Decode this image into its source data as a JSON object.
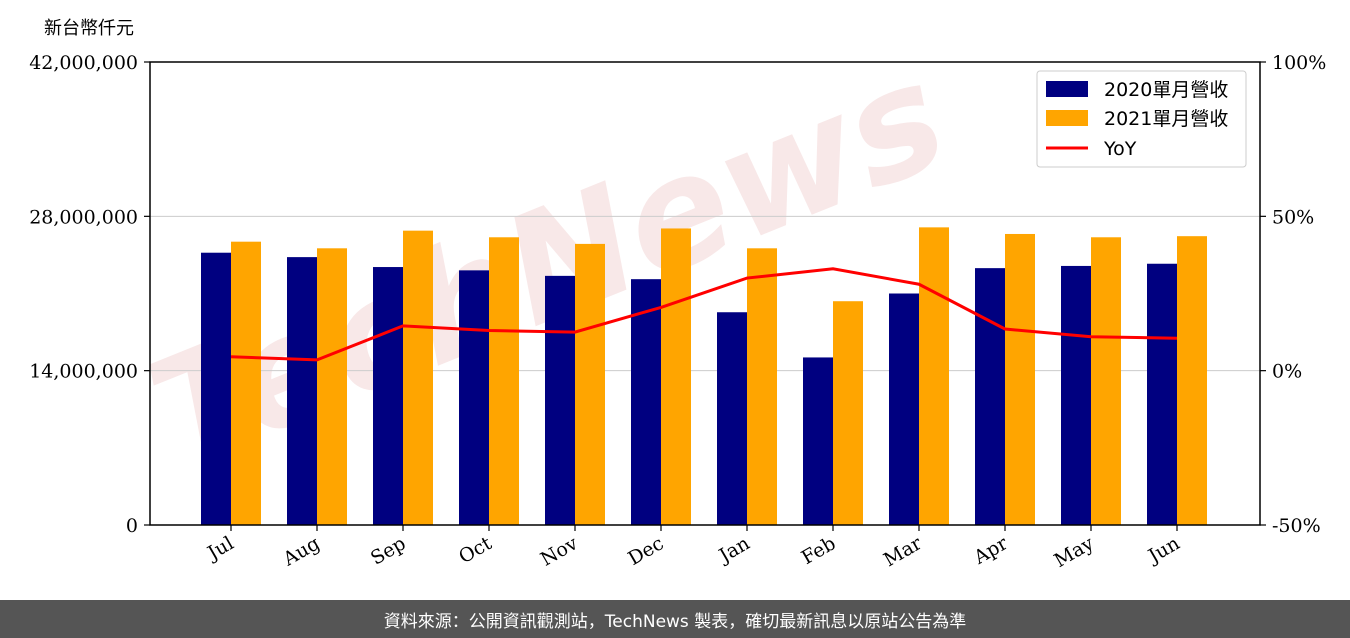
{
  "chart_data": {
    "type": "bar",
    "unit_label": "新台幣仟元",
    "categories": [
      "Jul",
      "Aug",
      "Sep",
      "Oct",
      "Nov",
      "Dec",
      "Jan",
      "Feb",
      "Mar",
      "Apr",
      "May",
      "Jun"
    ],
    "series": [
      {
        "name": "2020單月營收",
        "type": "bar",
        "axis": "left",
        "color": "#000080",
        "values": [
          24700000,
          24300000,
          23400000,
          23100000,
          22600000,
          22300000,
          19300000,
          15200000,
          21000000,
          23300000,
          23500000,
          23700000
        ]
      },
      {
        "name": "2021單月營收",
        "type": "bar",
        "axis": "left",
        "color": "#FFA500",
        "values": [
          25700000,
          25100000,
          26700000,
          26100000,
          25500000,
          26900000,
          25100000,
          20300000,
          27000000,
          26400000,
          26100000,
          26200000
        ]
      },
      {
        "name": "YoY",
        "type": "line",
        "axis": "right",
        "color": "#FF0000",
        "values": [
          4.5,
          3.5,
          14.5,
          13.0,
          12.5,
          20.5,
          30.0,
          33.0,
          28.0,
          13.5,
          11.0,
          10.5
        ]
      }
    ],
    "left_axis": {
      "ylim": [
        0,
        42000000
      ],
      "ticks": [
        "0",
        "14,000,000",
        "28,000,000",
        "42,000,000"
      ]
    },
    "right_axis": {
      "ylim": [
        -50,
        100
      ],
      "ticks": [
        "-50%",
        "0%",
        "50%",
        "100%"
      ]
    },
    "grid": "horizontal",
    "legend": "top-right",
    "watermark": "TechNews"
  },
  "footer": {
    "text": "資料來源：公開資訊觀測站，TechNews 製表，確切最新訊息以原站公告為準"
  }
}
